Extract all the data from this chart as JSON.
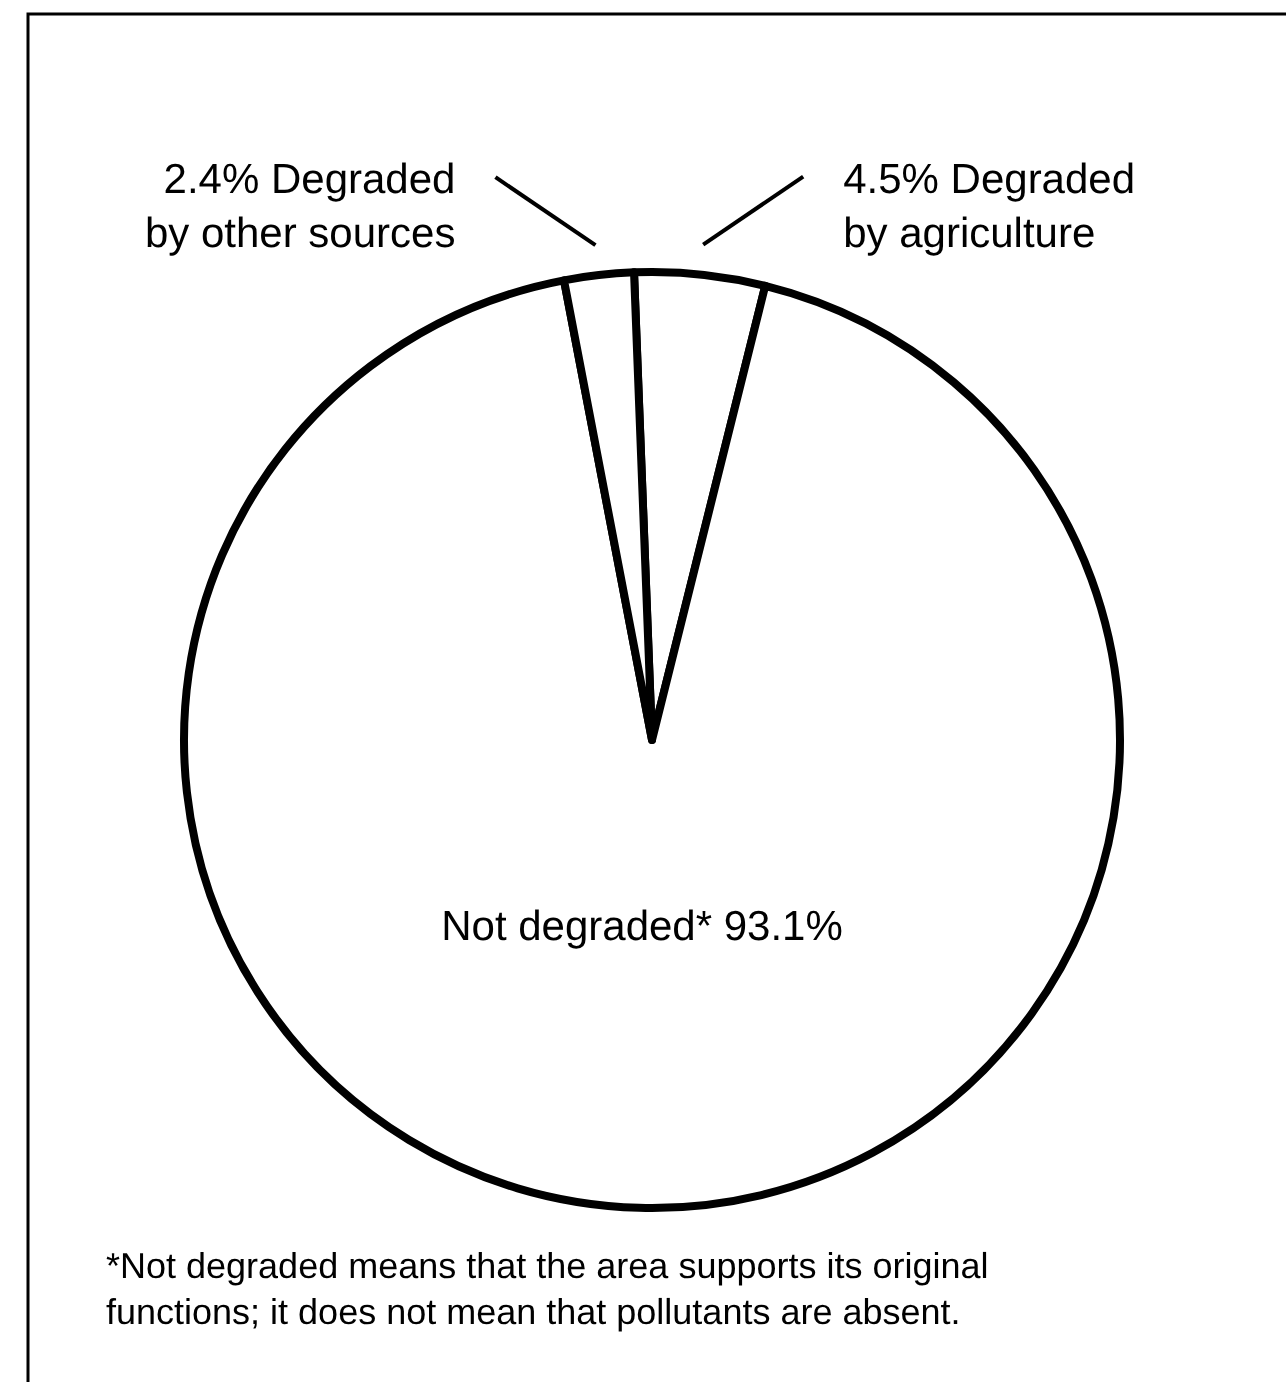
{
  "chart_data": {
    "type": "pie",
    "categories": [
      "Degraded by agriculture",
      "Not degraded*",
      "Degraded by other sources"
    ],
    "values": [
      4.5,
      93.1,
      2.4
    ],
    "colors": [
      "#ffffff",
      "#ffffff",
      "#ffffff"
    ],
    "value_labels": [
      "4.5%",
      "93.1%",
      "2.4%"
    ],
    "annotations": [
      "*Not degraded means that the area supports its original functions; it does not mean that pollutants are absent."
    ]
  }
}
